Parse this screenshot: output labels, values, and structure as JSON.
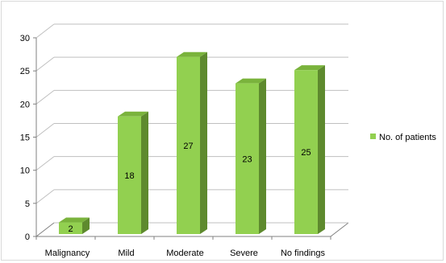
{
  "chart_data": {
    "type": "bar",
    "categories": [
      "Malignancy",
      "Mild",
      "Moderate",
      "Severe",
      "No findings"
    ],
    "series": [
      {
        "name": "No. of patients",
        "values": [
          2,
          18,
          27,
          23,
          25
        ]
      }
    ],
    "ylim": [
      0,
      30
    ],
    "yticks": [
      0,
      5,
      10,
      15,
      20,
      25,
      30
    ],
    "grid": true,
    "legend_position": "right",
    "data_labels": [
      "2",
      "18",
      "27",
      "23",
      "25"
    ],
    "colors": {
      "bar_front": "#92d050",
      "bar_side": "#5e8a2e",
      "bar_top": "#7ab33c",
      "grid": "#bfbfbf",
      "axis": "#808080"
    }
  }
}
